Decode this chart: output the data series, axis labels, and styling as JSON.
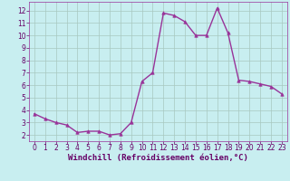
{
  "x": [
    0,
    1,
    2,
    3,
    4,
    5,
    6,
    7,
    8,
    9,
    10,
    11,
    12,
    13,
    14,
    15,
    16,
    17,
    18,
    19,
    20,
    21,
    22,
    23
  ],
  "y": [
    3.7,
    3.3,
    3.0,
    2.8,
    2.2,
    2.3,
    2.3,
    2.0,
    2.1,
    3.0,
    6.3,
    7.0,
    11.8,
    11.6,
    11.1,
    10.0,
    10.0,
    12.2,
    10.2,
    6.4,
    6.3,
    6.1,
    5.9,
    5.3
  ],
  "line_color": "#993399",
  "marker": "^",
  "marker_size": 2.5,
  "line_width": 1.0,
  "bg_color": "#c8eef0",
  "grid_color": "#a8c8c0",
  "xlabel": "Windchill (Refroidissement éolien,°C)",
  "xlabel_color": "#660066",
  "xlabel_fontsize": 6.5,
  "tick_color": "#660066",
  "tick_fontsize": 5.5,
  "ylim": [
    1.5,
    12.7
  ],
  "xlim": [
    -0.5,
    23.5
  ],
  "yticks": [
    2,
    3,
    4,
    5,
    6,
    7,
    8,
    9,
    10,
    11,
    12
  ],
  "xticks": [
    0,
    1,
    2,
    3,
    4,
    5,
    6,
    7,
    8,
    9,
    10,
    11,
    12,
    13,
    14,
    15,
    16,
    17,
    18,
    19,
    20,
    21,
    22,
    23
  ],
  "spine_color": "#993399"
}
